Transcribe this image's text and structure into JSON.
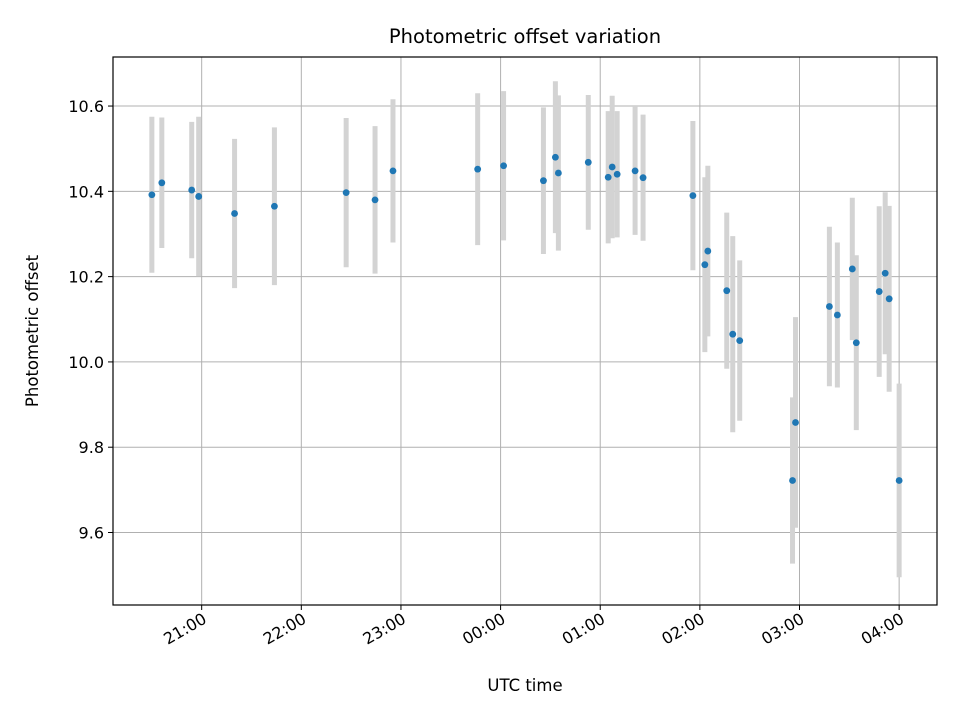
{
  "chart_data": {
    "type": "scatter",
    "title": "Photometric offset variation",
    "xlabel": "UTC time",
    "ylabel": "Photometric offset",
    "x_unit": "UTC hour (hours past 00:00; negative values are the previous evening)",
    "xlim": [
      -3.89,
      4.38
    ],
    "ylim": [
      9.43,
      10.715
    ],
    "x_ticks": [
      -3.0,
      -2.0,
      -1.0,
      0.0,
      1.0,
      2.0,
      3.0,
      4.0
    ],
    "x_tick_labels": [
      "21:00",
      "22:00",
      "23:00",
      "00:00",
      "01:00",
      "02:00",
      "03:00",
      "04:00"
    ],
    "y_ticks": [
      9.6,
      9.8,
      10.0,
      10.2,
      10.4,
      10.6
    ],
    "y_tick_labels": [
      "9.6",
      "9.8",
      "10.0",
      "10.2",
      "10.4",
      "10.6"
    ],
    "grid": true,
    "colors": {
      "marker": "#1f77b4",
      "errorbar": "#d3d3d3",
      "grid": "#b0b0b0"
    },
    "points": [
      {
        "x": -3.5,
        "y": 10.392,
        "err": 0.183
      },
      {
        "x": -3.4,
        "y": 10.42,
        "err": 0.153
      },
      {
        "x": -3.1,
        "y": 10.403,
        "err": 0.16
      },
      {
        "x": -3.03,
        "y": 10.388,
        "err": 0.187
      },
      {
        "x": -2.67,
        "y": 10.348,
        "err": 0.175
      },
      {
        "x": -2.27,
        "y": 10.365,
        "err": 0.185
      },
      {
        "x": -1.55,
        "y": 10.397,
        "err": 0.175
      },
      {
        "x": -1.26,
        "y": 10.38,
        "err": 0.173
      },
      {
        "x": -1.08,
        "y": 10.448,
        "err": 0.168
      },
      {
        "x": -0.23,
        "y": 10.452,
        "err": 0.178
      },
      {
        "x": 0.03,
        "y": 10.46,
        "err": 0.175
      },
      {
        "x": 0.43,
        "y": 10.425,
        "err": 0.172
      },
      {
        "x": 0.55,
        "y": 10.48,
        "err": 0.178
      },
      {
        "x": 0.58,
        "y": 10.443,
        "err": 0.182
      },
      {
        "x": 0.88,
        "y": 10.468,
        "err": 0.158
      },
      {
        "x": 1.08,
        "y": 10.433,
        "err": 0.155
      },
      {
        "x": 1.12,
        "y": 10.457,
        "err": 0.167
      },
      {
        "x": 1.17,
        "y": 10.44,
        "err": 0.148
      },
      {
        "x": 1.35,
        "y": 10.448,
        "err": 0.15
      },
      {
        "x": 1.43,
        "y": 10.432,
        "err": 0.148
      },
      {
        "x": 1.93,
        "y": 10.39,
        "err": 0.175
      },
      {
        "x": 2.05,
        "y": 10.228,
        "err": 0.205
      },
      {
        "x": 2.08,
        "y": 10.26,
        "err": 0.2
      },
      {
        "x": 2.27,
        "y": 10.167,
        "err": 0.183
      },
      {
        "x": 2.33,
        "y": 10.065,
        "err": 0.23
      },
      {
        "x": 2.4,
        "y": 10.05,
        "err": 0.188
      },
      {
        "x": 2.93,
        "y": 9.722,
        "err": 0.195
      },
      {
        "x": 2.96,
        "y": 9.858,
        "err": 0.247
      },
      {
        "x": 3.3,
        "y": 10.13,
        "err": 0.187
      },
      {
        "x": 3.38,
        "y": 10.11,
        "err": 0.17
      },
      {
        "x": 3.53,
        "y": 10.218,
        "err": 0.167
      },
      {
        "x": 3.57,
        "y": 10.045,
        "err": 0.205
      },
      {
        "x": 3.8,
        "y": 10.165,
        "err": 0.2
      },
      {
        "x": 3.86,
        "y": 10.208,
        "err": 0.19
      },
      {
        "x": 3.9,
        "y": 10.148,
        "err": 0.218
      },
      {
        "x": 4.0,
        "y": 9.722,
        "err": 0.227
      }
    ]
  }
}
